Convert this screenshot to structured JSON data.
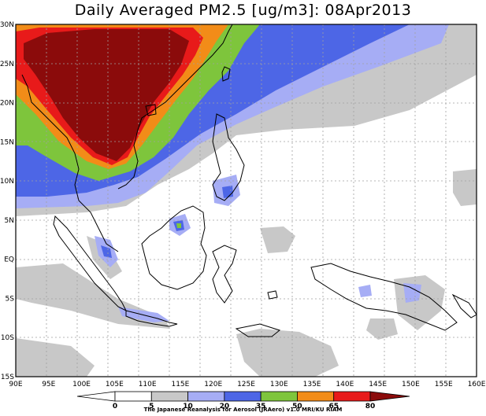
{
  "title": "Daily Averaged PM2.5 [ug/m3]: 08Apr2013",
  "credit": "The Japanese Reanalysis for Aerosol (JRAero) v1.0 MRI/KU RIAM",
  "axes": {
    "x_ticks": [
      "90E",
      "95E",
      "100E",
      "105E",
      "110E",
      "115E",
      "120E",
      "125E",
      "130E",
      "135E",
      "140E",
      "145E",
      "150E",
      "155E",
      "160E"
    ],
    "y_ticks": [
      "30N",
      "25N",
      "20N",
      "15N",
      "10N",
      "5N",
      "EQ",
      "5S",
      "10S",
      "15S"
    ]
  },
  "colorbar": {
    "labels": [
      "0",
      "5",
      "10",
      "20",
      "35",
      "50",
      "65",
      "80"
    ],
    "colors": [
      "#ffffff",
      "#c8c8c8",
      "#a6adf5",
      "#4d66e6",
      "#7ec53c",
      "#f28c18",
      "#e81a1a",
      "#8b0b0b"
    ]
  }
}
